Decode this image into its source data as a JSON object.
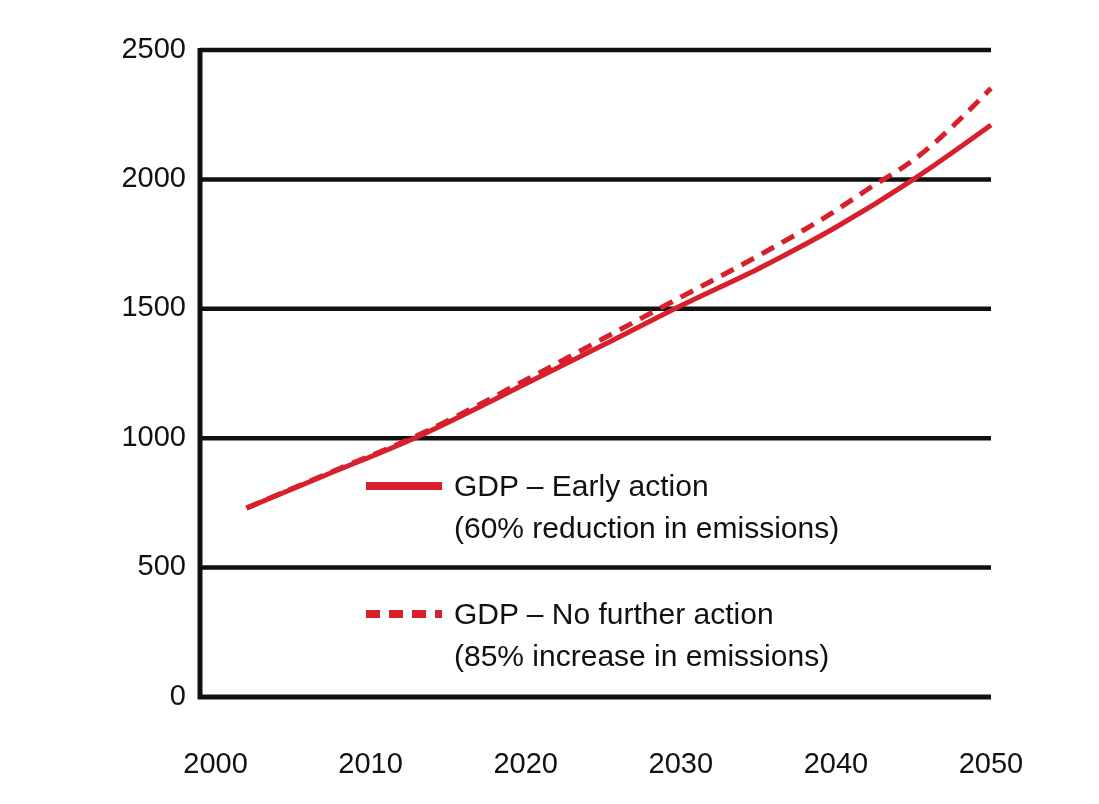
{
  "chart_data": {
    "type": "line",
    "xlim": [
      1999,
      2050
    ],
    "xticks": [
      2000,
      2010,
      2020,
      2030,
      2040,
      2050
    ],
    "ylim": [
      0,
      2500
    ],
    "yticks": [
      0,
      500,
      1000,
      1500,
      2000,
      2500
    ],
    "grid": "y",
    "legend": "bottom right",
    "marker": "none",
    "series": [
      {
        "name": "GDP – Early action\n(60% reduction in emissions)",
        "color": "#d7202b",
        "line_style": "solid",
        "x": [
          2002,
          2007,
          2013,
          2020,
          2025,
          2030,
          2035,
          2040,
          2045,
          2050
        ],
        "values": [
          730,
          855,
          1005,
          1210,
          1360,
          1512,
          1655,
          1815,
          2000,
          2210
        ]
      },
      {
        "name": "GDP – No further action\n(85% increase in emissions)",
        "color": "#d7202b",
        "line_style": "dashed",
        "x": [
          2002,
          2007,
          2013,
          2020,
          2025,
          2030,
          2035,
          2040,
          2042,
          2045,
          2050
        ],
        "values": [
          730,
          858,
          1010,
          1225,
          1385,
          1545,
          1705,
          1880,
          1960,
          2075,
          2352
        ]
      }
    ]
  }
}
